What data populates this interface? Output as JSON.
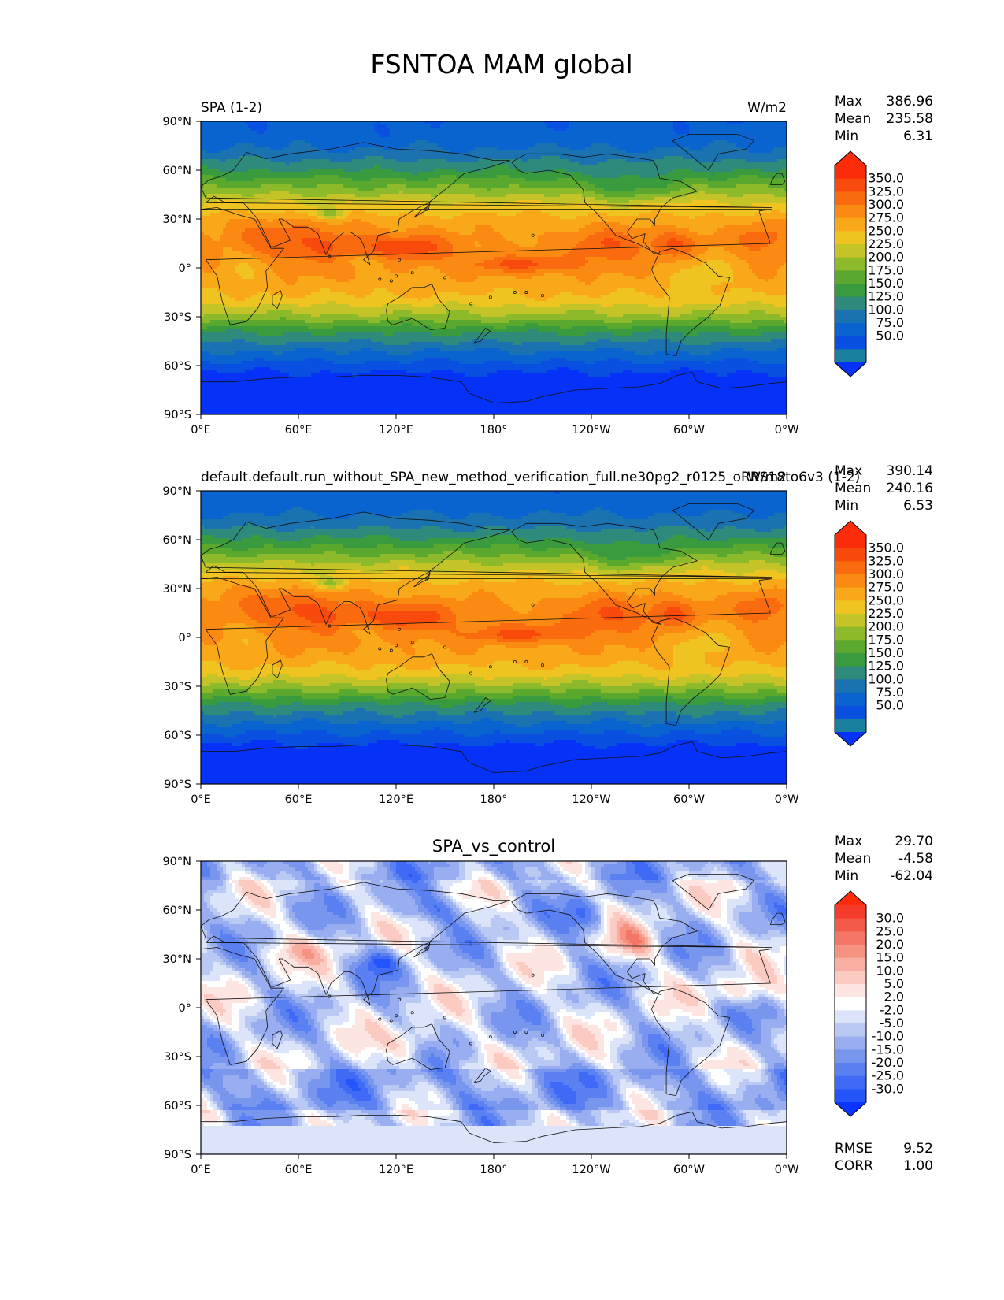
{
  "figure": {
    "title": "FSNTOA MAM global"
  },
  "axes": {
    "lat_ticks": [
      "90°N",
      "60°N",
      "30°N",
      "0°",
      "30°S",
      "60°S",
      "90°S"
    ],
    "lon_ticks": [
      "0°E",
      "60°E",
      "120°E",
      "180°",
      "120°W",
      "60°W",
      "0°W"
    ]
  },
  "panels": [
    {
      "title_left": "SPA (1-2)",
      "title_center": "",
      "title_right": "W/m2",
      "stats": {
        "Max": "386.96",
        "Mean": "235.58",
        "Min": "6.31"
      },
      "extra_stats": []
    },
    {
      "title_left": "default.default.run_without_SPA_new_method_verification_full.ne30pg2_r0125_oRRS18to6v3 (1-2)",
      "title_center": "",
      "title_right": "W/m2",
      "stats": {
        "Max": "390.14",
        "Mean": "240.16",
        "Min": "6.53"
      },
      "extra_stats": []
    },
    {
      "title_left": "",
      "title_center": "SPA_vs_control",
      "title_right": "",
      "stats": {
        "Max": "29.70",
        "Mean": "-4.58",
        "Min": "-62.04"
      },
      "extra_stats": [
        {
          "label": "RMSE",
          "value": "9.52"
        },
        {
          "label": "CORR",
          "value": "1.00"
        }
      ]
    }
  ],
  "colorbars": {
    "field": {
      "labels": [
        "350.0",
        "325.0",
        "300.0",
        "275.0",
        "250.0",
        "225.0",
        "200.0",
        "175.0",
        "150.0",
        "125.0",
        "100.0",
        "75.0",
        "50.0"
      ],
      "colors": [
        "#1a80a0",
        "#0a50e0",
        "#0a64d0",
        "#1a72b0",
        "#2e8a7a",
        "#3a9a3e",
        "#5aa82e",
        "#8cba2a",
        "#c4c428",
        "#f0c420",
        "#f8a818",
        "#fa8a12",
        "#fa6a0e",
        "#f84a0c",
        "#fb2c0a"
      ],
      "under_color": "#0632f8",
      "over_color": "#ff2c0c"
    },
    "diff": {
      "labels": [
        "30.0",
        "25.0",
        "20.0",
        "15.0",
        "10.0",
        "5.0",
        "2.0",
        "-2.0",
        "-5.0",
        "-10.0",
        "-15.0",
        "-20.0",
        "-25.0",
        "-30.0"
      ],
      "colors": [
        "#2455fa",
        "#3f6af6",
        "#5a80f2",
        "#7896ee",
        "#98aef0",
        "#bac8f4",
        "#dce4fa",
        "#ffffff",
        "#fde6e2",
        "#fbcbc2",
        "#f8aea2",
        "#f59282",
        "#f47666",
        "#f45a48",
        "#f53c2c"
      ],
      "under_color": "#0a35ff",
      "over_color": "#ff2c0c"
    }
  },
  "chart_data": [
    {
      "type": "heatmap",
      "title": "SPA (1-2)",
      "units": "W/m2",
      "x": [
        "0°E",
        "60°E",
        "120°E",
        "180°",
        "120°W",
        "60°W",
        "0°W"
      ],
      "y": [
        "90°N",
        "60°N",
        "30°N",
        "0°",
        "30°S",
        "60°S",
        "90°S"
      ],
      "xlim": [
        0,
        360
      ],
      "ylim": [
        -90,
        90
      ],
      "levels": [
        50,
        75,
        100,
        125,
        150,
        175,
        200,
        225,
        250,
        275,
        300,
        325,
        350
      ],
      "zonal_mean_by_lat": {
        "lat": [
          -90,
          -70,
          -60,
          -50,
          -40,
          -30,
          -20,
          -10,
          0,
          10,
          20,
          30,
          40,
          50,
          60,
          70,
          80,
          90
        ],
        "value": [
          20,
          30,
          65,
          105,
          150,
          215,
          265,
          290,
          300,
          305,
          300,
          285,
          250,
          200,
          150,
          110,
          85,
          80
        ]
      },
      "max": 386.96,
      "mean": 235.58,
      "min": 6.31
    },
    {
      "type": "heatmap",
      "title": "default.default.run_without_SPA_new_method_verification_full.ne30pg2_r0125_oRRS18to6v3 (1-2)",
      "units": "W/m2",
      "x": [
        "0°E",
        "60°E",
        "120°E",
        "180°",
        "120°W",
        "60°W",
        "0°W"
      ],
      "y": [
        "90°N",
        "60°N",
        "30°N",
        "0°",
        "30°S",
        "60°S",
        "90°S"
      ],
      "xlim": [
        0,
        360
      ],
      "ylim": [
        -90,
        90
      ],
      "levels": [
        50,
        75,
        100,
        125,
        150,
        175,
        200,
        225,
        250,
        275,
        300,
        325,
        350
      ],
      "zonal_mean_by_lat": {
        "lat": [
          -90,
          -70,
          -60,
          -50,
          -40,
          -30,
          -20,
          -10,
          0,
          10,
          20,
          30,
          40,
          50,
          60,
          70,
          80,
          90
        ],
        "value": [
          20,
          30,
          67,
          108,
          155,
          220,
          270,
          295,
          305,
          310,
          305,
          290,
          255,
          205,
          153,
          112,
          86,
          80
        ]
      },
      "max": 390.14,
      "mean": 240.16,
      "min": 6.53
    },
    {
      "type": "heatmap",
      "title": "SPA_vs_control",
      "x": [
        "0°E",
        "60°E",
        "120°E",
        "180°",
        "120°W",
        "60°W",
        "0°W"
      ],
      "y": [
        "90°N",
        "60°N",
        "30°N",
        "0°",
        "30°S",
        "60°S",
        "90°S"
      ],
      "xlim": [
        0,
        360
      ],
      "ylim": [
        -90,
        90
      ],
      "levels": [
        -30,
        -25,
        -20,
        -15,
        -10,
        -5,
        -2,
        2,
        5,
        10,
        15,
        20,
        25,
        30
      ],
      "max": 29.7,
      "mean": -4.58,
      "min": -62.04,
      "rmse": 9.52,
      "corr": 1.0
    }
  ]
}
